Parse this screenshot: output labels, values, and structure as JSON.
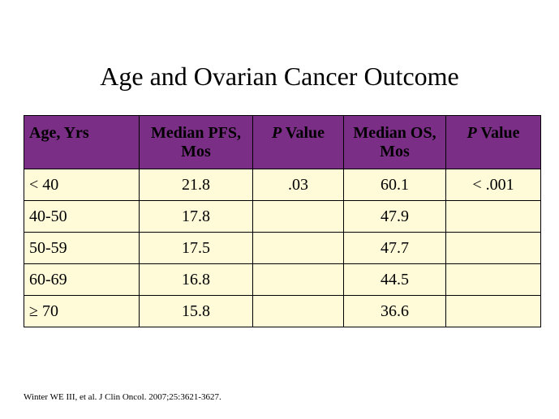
{
  "title": "Age and Ovarian Cancer Outcome",
  "table": {
    "headers": {
      "age": "Age, Yrs",
      "median_pfs": "Median PFS, Mos",
      "pfs_p_letter": "P",
      "pfs_p_rest": " Value",
      "median_os": "Median OS, Mos",
      "os_p_letter": "P",
      "os_p_rest": " Value"
    },
    "rows": [
      {
        "age": "< 40",
        "pfs": "21.8",
        "pfs_p": ".03",
        "os": "60.1",
        "os_p": "< .001"
      },
      {
        "age": "40-50",
        "pfs": "17.8",
        "pfs_p": "",
        "os": "47.9",
        "os_p": ""
      },
      {
        "age": "50-59",
        "pfs": "17.5",
        "pfs_p": "",
        "os": "47.7",
        "os_p": ""
      },
      {
        "age": "60-69",
        "pfs": "16.8",
        "pfs_p": "",
        "os": "44.5",
        "os_p": ""
      },
      {
        "age": "≥ 70",
        "pfs": "15.8",
        "pfs_p": "",
        "os": "36.6",
        "os_p": ""
      }
    ]
  },
  "citation": "Winter WE III, et al. J Clin Oncol. 2007;25:3621-3627.",
  "colors": {
    "header_background": "#7b2e86",
    "row_background": "#fffbd9"
  }
}
